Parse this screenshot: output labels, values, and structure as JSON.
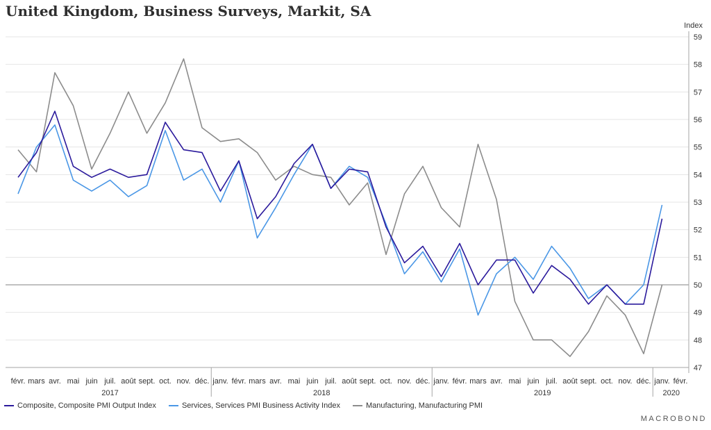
{
  "title": "United Kingdom, Business Surveys, Markit, SA",
  "brand": "MACROBOND",
  "colors": {
    "composite": "#2b1a9c",
    "services": "#4a97e6",
    "manufacturing": "#8c8c8c",
    "grid": "#e4e4e4",
    "axis": "#a6a6a6"
  },
  "chart_data": {
    "type": "line",
    "ylabel": "Index",
    "ylim": [
      47,
      59
    ],
    "yticks": [
      47,
      48,
      49,
      50,
      51,
      52,
      53,
      54,
      55,
      56,
      57,
      58,
      59
    ],
    "reference_line": 50,
    "grid": true,
    "legend_position": "bottom-left",
    "categories": [
      "févr.",
      "mars",
      "avr.",
      "mai",
      "juin",
      "juil.",
      "août",
      "sept.",
      "oct.",
      "nov.",
      "déc.",
      "janv.",
      "févr.",
      "mars",
      "avr.",
      "mai",
      "juin",
      "juil.",
      "août",
      "sept.",
      "oct.",
      "nov.",
      "déc.",
      "janv.",
      "févr.",
      "mars",
      "avr.",
      "mai",
      "juin",
      "juil.",
      "août",
      "sept.",
      "oct.",
      "nov.",
      "déc.",
      "janv.",
      "févr."
    ],
    "years": [
      {
        "label": "2017",
        "start": 0,
        "end": 10
      },
      {
        "label": "2018",
        "start": 11,
        "end": 22
      },
      {
        "label": "2019",
        "start": 23,
        "end": 34
      },
      {
        "label": "2020",
        "start": 35,
        "end": 36
      }
    ],
    "series": [
      {
        "name": "Composite, Composite PMI Output Index",
        "key": "composite",
        "values": [
          53.9,
          54.8,
          56.3,
          54.3,
          53.9,
          54.2,
          53.9,
          54.0,
          55.9,
          54.9,
          54.8,
          53.4,
          54.5,
          52.4,
          53.2,
          54.4,
          55.1,
          53.5,
          54.2,
          54.1,
          52.1,
          50.8,
          51.4,
          50.3,
          51.5,
          50.0,
          50.9,
          50.9,
          49.7,
          50.7,
          50.2,
          49.3,
          50.0,
          49.3,
          49.3,
          52.4,
          null
        ]
      },
      {
        "name": "Services, Services PMI Business Activity Index",
        "key": "services",
        "values": [
          53.3,
          55.0,
          55.8,
          53.8,
          53.4,
          53.8,
          53.2,
          53.6,
          55.6,
          53.8,
          54.2,
          53.0,
          54.5,
          51.7,
          52.8,
          54.0,
          55.1,
          53.5,
          54.3,
          53.9,
          52.2,
          50.4,
          51.2,
          50.1,
          51.3,
          48.9,
          50.4,
          51.0,
          50.2,
          51.4,
          50.6,
          49.5,
          50.0,
          49.3,
          50.0,
          52.9,
          null
        ]
      },
      {
        "name": "Manufacturing, Manufacturing PMI",
        "key": "manufacturing",
        "values": [
          54.9,
          54.1,
          57.7,
          56.5,
          54.2,
          55.5,
          57.0,
          55.5,
          56.6,
          58.2,
          55.7,
          55.2,
          55.3,
          54.8,
          53.8,
          54.3,
          54.0,
          53.9,
          52.9,
          53.7,
          51.1,
          53.3,
          54.3,
          52.8,
          52.1,
          55.1,
          53.1,
          49.4,
          48.0,
          48.0,
          47.4,
          48.3,
          49.6,
          48.9,
          47.5,
          50.0,
          null
        ]
      }
    ]
  }
}
